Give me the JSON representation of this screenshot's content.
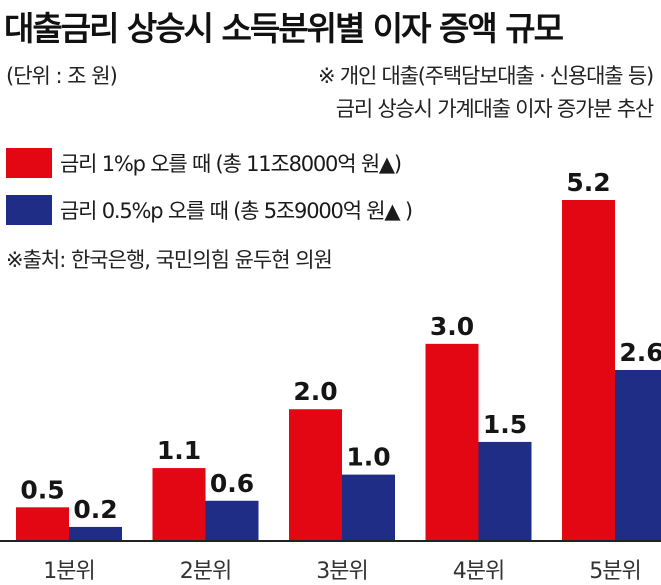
{
  "header": {
    "title": "대출금리 상승시 소득분위별 이자 증액 규모",
    "unit": "(단위 : 조 원)",
    "note_line1": "※ 개인 대출(주택담보대출 · 신용대출 등)",
    "note_line2": "금리 상승시 가계대출 이자 증가분 추산"
  },
  "footer": {
    "source": "※출처: 한국은행, 국민의힘 윤두현 의원"
  },
  "colors": {
    "red": "#e30613",
    "blue": "#1f2d86"
  },
  "chart_data": {
    "type": "bar",
    "categories": [
      "1분위",
      "2분위",
      "3분위",
      "4분위",
      "5분위"
    ],
    "series": [
      {
        "name": "금리 1%p 오를 때 (총 11조8000억 원▲)",
        "values": [
          0.5,
          1.1,
          2.0,
          3.0,
          5.2
        ],
        "labels": [
          "0.5",
          "1.1",
          "2.0",
          "3.0",
          "5.2"
        ],
        "color": "#e30613"
      },
      {
        "name": "금리 0.5%p 오를 때 (총 5조9000억 원▲ )",
        "values": [
          0.2,
          0.6,
          1.0,
          1.5,
          2.6
        ],
        "labels": [
          "0.2",
          "0.6",
          "1.0",
          "1.5",
          "2.6"
        ],
        "color": "#1f2d86"
      }
    ],
    "title": "대출금리 상승시 소득분위별 이자 증액 규모",
    "xlabel": "",
    "ylabel": "",
    "ylim": [
      0,
      5.2
    ],
    "grid": false,
    "legend": "top-left"
  }
}
